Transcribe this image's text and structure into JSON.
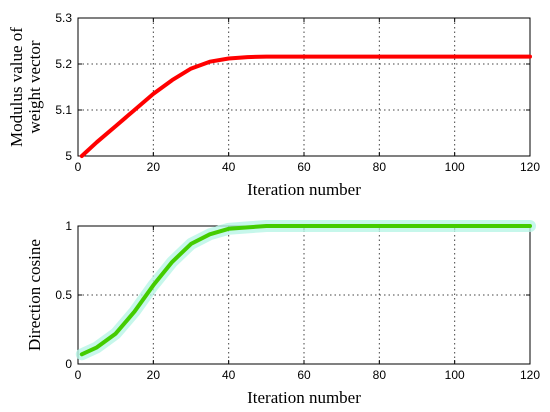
{
  "chart_data": [
    {
      "type": "line",
      "xlabel": "Iteration number",
      "ylabel_lines": [
        "Modulus value of",
        "weight vector"
      ],
      "xlim": [
        0,
        120
      ],
      "ylim": [
        5,
        5.3
      ],
      "xticks": [
        "0",
        "20",
        "40",
        "60",
        "80",
        "100",
        "120"
      ],
      "yticks": [
        "5",
        "5.1",
        "5.2",
        "5.3"
      ],
      "grid": true,
      "series": [
        {
          "color": "#ff0000",
          "x": [
            1,
            5,
            10,
            15,
            20,
            25,
            30,
            35,
            40,
            45,
            50,
            60,
            80,
            100,
            120
          ],
          "y": [
            5.0,
            5.03,
            5.065,
            5.1,
            5.135,
            5.165,
            5.19,
            5.205,
            5.212,
            5.215,
            5.216,
            5.216,
            5.216,
            5.216,
            5.216
          ]
        }
      ]
    },
    {
      "type": "line",
      "xlabel": "Iteration number",
      "ylabel_lines": [
        "Direction cosine"
      ],
      "xlim": [
        0,
        120
      ],
      "ylim": [
        0,
        1
      ],
      "xticks": [
        "0",
        "20",
        "40",
        "60",
        "80",
        "100",
        "120"
      ],
      "yticks": [
        "0",
        "0.5",
        "1"
      ],
      "grid": true,
      "series": [
        {
          "color": "#44cc00",
          "x": [
            1,
            5,
            10,
            15,
            20,
            25,
            30,
            35,
            40,
            45,
            50,
            60,
            80,
            100,
            120
          ],
          "y": [
            0.07,
            0.12,
            0.22,
            0.38,
            0.57,
            0.74,
            0.87,
            0.94,
            0.98,
            0.99,
            1.0,
            1.0,
            1.0,
            1.0,
            1.0
          ]
        }
      ]
    }
  ]
}
